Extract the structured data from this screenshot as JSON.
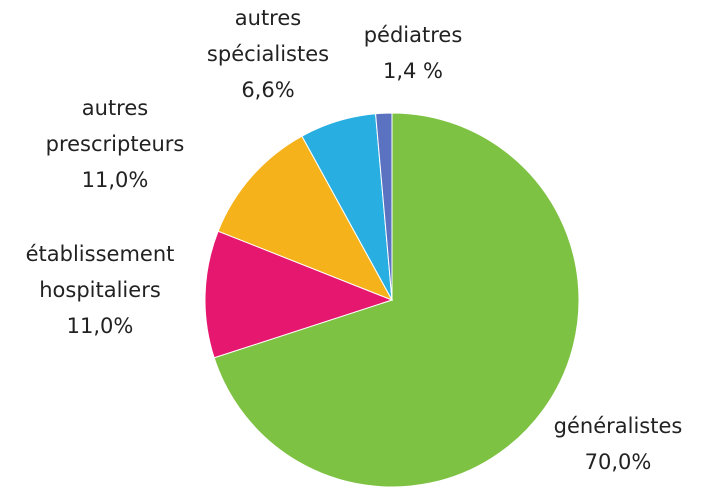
{
  "chart_data": {
    "type": "pie",
    "categories": [
      "généralistes",
      "établissement hospitaliers",
      "autres prescripteurs",
      "autres spécialistes",
      "pédiatres"
    ],
    "values": [
      70.0,
      11.0,
      11.0,
      6.6,
      1.4
    ],
    "value_labels": [
      "70,0%",
      "11,0%",
      "11,0%",
      "6,6%",
      "1,4 %"
    ],
    "colors": [
      "#7dc242",
      "#e5176f",
      "#f5b21b",
      "#29aee2",
      "#5b72c0"
    ]
  }
}
